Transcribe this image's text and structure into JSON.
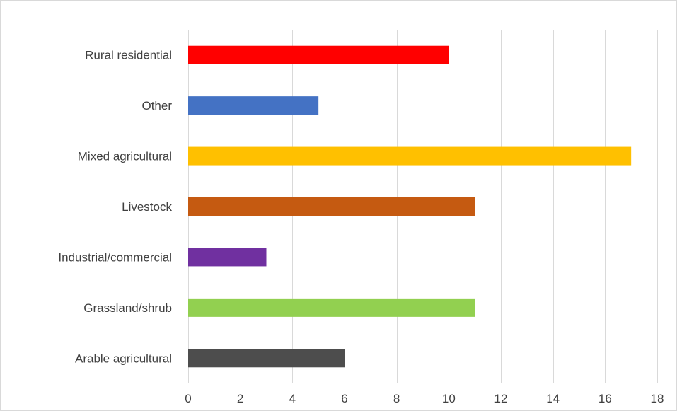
{
  "chart_data": {
    "type": "bar",
    "orientation": "horizontal",
    "title": "",
    "xlabel": "",
    "ylabel": "",
    "categories": [
      "Rural residential",
      "Other",
      "Mixed agricultural",
      "Livestock",
      "Industrial/commercial",
      "Grassland/shrub",
      "Arable agricultural"
    ],
    "values": [
      10,
      5,
      17,
      11,
      3,
      11,
      6
    ],
    "colors": [
      "#ff0000",
      "#4472c4",
      "#ffc000",
      "#c55a11",
      "#7030a0",
      "#92d050",
      "#4d4d4d"
    ],
    "xlim": [
      0,
      18
    ],
    "xticks": [
      0,
      2,
      4,
      6,
      8,
      10,
      12,
      14,
      16,
      18
    ],
    "grid": "vertical",
    "legend": "none"
  }
}
